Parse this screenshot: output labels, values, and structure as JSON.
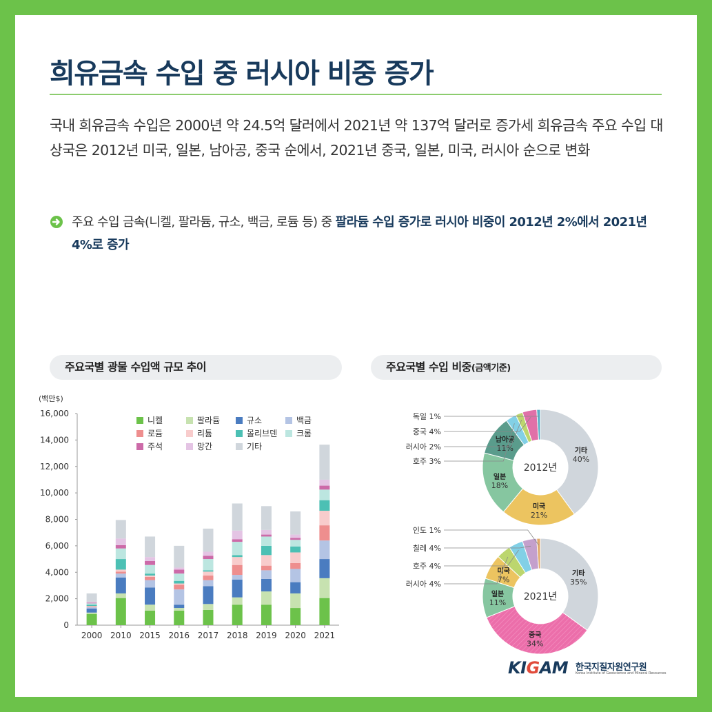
{
  "title": "희유금속 수입 중 러시아 비중 증가",
  "intro": "국내 희유금속 수입은 2000년 약 24.5억 달러에서 2021년 약 137억 달러로 증가세 희유금속 주요 수입 대상국은 2012년 미국, 일본, 남아공, 중국 순에서, 2021년 중국, 일본, 미국, 러시아 순으로 변화",
  "bullet": {
    "normal": "주요 수입 금속(니켈, 팔라듐, 규소, 백금, 로듐 등) 중 ",
    "highlight": "팔라듐 수입 증가로 러시아 비중이 2012년 2%에서 2021년 4%로 증가"
  },
  "panels": {
    "left_title": "주요국별 광물 수입액 규모 추이",
    "right_title_main": "주요국별 수입 비중",
    "right_title_sub": "(금액기준)"
  },
  "logo": {
    "mark_a": "KI",
    "mark_g": "G",
    "mark_b": "AM",
    "korean": "한국지질자원연구원",
    "english": "Korea Institute of Geoscience and Mineral Resources"
  },
  "colors": {
    "frame": "#6cc24a",
    "title": "#183a5c",
    "nickel": "#6cc24a",
    "palladium": "#c7e2b0",
    "silicon": "#4a7cc0",
    "platinum": "#b4c4e4",
    "rhodium": "#ee8e8e",
    "lithium": "#f8cccc",
    "molybdenum": "#4cc0b4",
    "chromium": "#bce6e0",
    "tin": "#cc6aa8",
    "manganese": "#e4c4e4",
    "other": "#d0d6dc"
  },
  "chart_data": [
    {
      "type": "bar",
      "stacked": true,
      "title": "주요국별 광물 수입액 규모 추이",
      "ylabel": "(백만$)",
      "ylim": [
        0,
        16000
      ],
      "yticks": [
        "0",
        "2,000",
        "4,000",
        "6,000",
        "8,000",
        "10,000",
        "12,000",
        "14,000",
        "16,000"
      ],
      "categories": [
        "2000",
        "2010",
        "2015",
        "2016",
        "2017",
        "2018",
        "2019",
        "2020",
        "2021"
      ],
      "legend_position": "top",
      "series": [
        {
          "name": "니켈",
          "color": "#6cc24a",
          "values": [
            850,
            2050,
            1100,
            1100,
            1150,
            1550,
            1550,
            1300,
            2050
          ]
        },
        {
          "name": "팔라듐",
          "color": "#c7e2b0",
          "values": [
            100,
            350,
            450,
            200,
            450,
            550,
            1000,
            1100,
            1500
          ]
        },
        {
          "name": "규소",
          "color": "#4a7cc0",
          "values": [
            300,
            1200,
            1300,
            250,
            1350,
            1350,
            950,
            850,
            1450
          ]
        },
        {
          "name": "백금",
          "color": "#b4c4e4",
          "values": [
            100,
            300,
            550,
            1150,
            450,
            350,
            650,
            1000,
            1400
          ]
        },
        {
          "name": "로듐",
          "color": "#ee8e8e",
          "values": [
            50,
            150,
            250,
            350,
            350,
            750,
            350,
            450,
            1150
          ]
        },
        {
          "name": "리튬",
          "color": "#f8cccc",
          "values": [
            50,
            150,
            100,
            100,
            300,
            600,
            800,
            800,
            1100
          ]
        },
        {
          "name": "몰리브덴",
          "color": "#4cc0b4",
          "values": [
            100,
            800,
            150,
            200,
            100,
            150,
            700,
            450,
            800
          ]
        },
        {
          "name": "크롬",
          "color": "#bce6e0",
          "values": [
            100,
            800,
            650,
            550,
            850,
            1000,
            700,
            500,
            800
          ]
        },
        {
          "name": "주석",
          "color": "#cc6aa8",
          "values": [
            50,
            250,
            300,
            300,
            250,
            200,
            150,
            150,
            300
          ]
        },
        {
          "name": "망간",
          "color": "#e4c4e4",
          "values": [
            50,
            500,
            300,
            150,
            300,
            650,
            350,
            250,
            450
          ]
        },
        {
          "name": "기타",
          "color": "#d0d6dc",
          "values": [
            650,
            1400,
            1550,
            1650,
            1750,
            2050,
            1800,
            1750,
            2650
          ]
        }
      ]
    },
    {
      "type": "pie",
      "donut": true,
      "title": "2012년",
      "slices": [
        {
          "label": "기타",
          "value": 40,
          "text": "40%",
          "color": "#d0d6dc"
        },
        {
          "label": "미국",
          "value": 21,
          "text": "21%",
          "color": "#ecc460"
        },
        {
          "label": "일본",
          "value": 18,
          "text": "18%",
          "color": "#86c6a0"
        },
        {
          "label": "남아공",
          "value": 11,
          "text": "11%",
          "color": "#5a9c8c"
        },
        {
          "label": "호주",
          "value": 3,
          "text": "3%",
          "color": "#82d0e6"
        },
        {
          "label": "러시아",
          "value": 2,
          "text": "2%",
          "color": "#bcd66e"
        },
        {
          "label": "중국",
          "value": 4,
          "text": "4%",
          "color": "#e070a8"
        },
        {
          "label": "독일",
          "value": 1,
          "text": "1%",
          "color": "#5aaec6"
        }
      ],
      "callouts": [
        "독일 1%",
        "중국 4%",
        "러시아 2%",
        "호주 3%"
      ]
    },
    {
      "type": "pie",
      "donut": true,
      "title": "2021년",
      "slices": [
        {
          "label": "기타",
          "value": 35,
          "text": "35%",
          "color": "#d0d6dc"
        },
        {
          "label": "중국",
          "value": 34,
          "text": "34%",
          "color": "#ec6eaa"
        },
        {
          "label": "일본",
          "value": 11,
          "text": "11%",
          "color": "#86c6a0"
        },
        {
          "label": "미국",
          "value": 7,
          "text": "7%",
          "color": "#ecc460"
        },
        {
          "label": "러시아",
          "value": 4,
          "text": "4%",
          "color": "#bcd66e"
        },
        {
          "label": "호주",
          "value": 4,
          "text": "4%",
          "color": "#82d0e6"
        },
        {
          "label": "칠레",
          "value": 4,
          "text": "4%",
          "color": "#c4a0cc"
        },
        {
          "label": "인도",
          "value": 1,
          "text": "1%",
          "color": "#e0a86a"
        }
      ],
      "callouts": [
        "인도 1%",
        "칠레 4%",
        "호주 4%",
        "러시아 4%"
      ]
    }
  ]
}
